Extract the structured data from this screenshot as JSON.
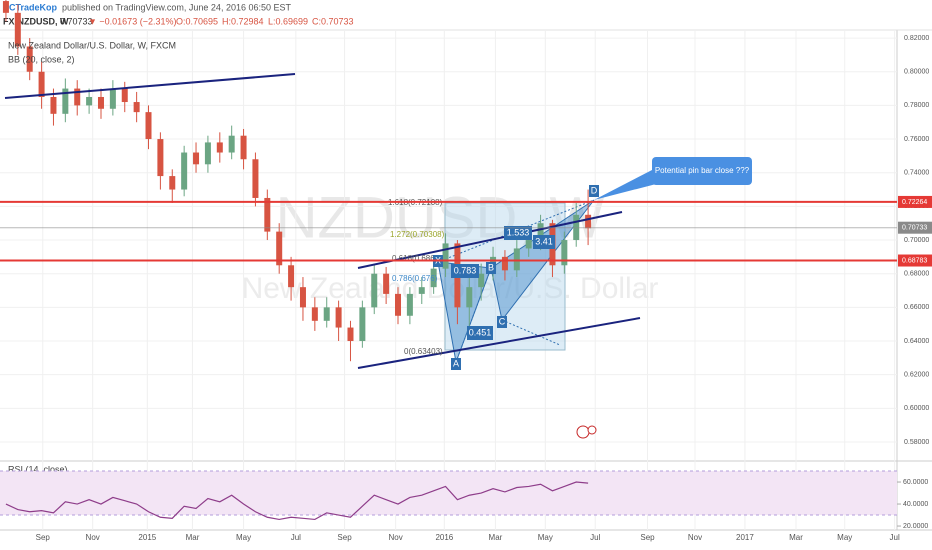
{
  "header": {
    "publisher": "PCTradeKop",
    "published": "published on TradingView.com, June 24, 2016 06:50 EST",
    "symbol": "FX:NZDUSD, W",
    "last": "0.70733",
    "change": "▼ −0.01673 (−2.31%)",
    "open": "O:0.70695",
    "high": "H:0.72984",
    "low": "L:0.69699",
    "close": "C:0.70733"
  },
  "chart_data": {
    "type": "candlestick",
    "title": "New Zealand Dollar/U.S. Dollar, W, FXCM",
    "indicator": "BB (20, close, 2)",
    "watermark": "NZDUSD, W",
    "watermark_subtitle": "New Zealand Dollar/U.S. Dollar",
    "up_color": "#6ba583",
    "down_color": "#d75442",
    "open": [
      0.842,
      0.835,
      0.815,
      0.8,
      0.785,
      0.775,
      0.79,
      0.78,
      0.785,
      0.778,
      0.79,
      0.782,
      0.776,
      0.76,
      0.738,
      0.73,
      0.752,
      0.745,
      0.758,
      0.752,
      0.762,
      0.748,
      0.725,
      0.705,
      0.685,
      0.672,
      0.66,
      0.652,
      0.66,
      0.648,
      0.64,
      0.66,
      0.68,
      0.668,
      0.655,
      0.668,
      0.672,
      0.683,
      0.698,
      0.66,
      0.672,
      0.68,
      0.69,
      0.682,
      0.695,
      0.7,
      0.71,
      0.685,
      0.7,
      0.715
    ],
    "high": [
      0.848,
      0.84,
      0.82,
      0.806,
      0.79,
      0.796,
      0.795,
      0.79,
      0.79,
      0.795,
      0.794,
      0.788,
      0.78,
      0.764,
      0.742,
      0.756,
      0.758,
      0.762,
      0.764,
      0.768,
      0.766,
      0.752,
      0.73,
      0.71,
      0.69,
      0.678,
      0.666,
      0.666,
      0.664,
      0.652,
      0.664,
      0.686,
      0.684,
      0.672,
      0.672,
      0.678,
      0.688,
      0.704,
      0.7,
      0.678,
      0.686,
      0.696,
      0.694,
      0.7,
      0.708,
      0.715,
      0.712,
      0.705,
      0.722,
      0.73
    ],
    "low": [
      0.83,
      0.81,
      0.795,
      0.778,
      0.768,
      0.77,
      0.774,
      0.775,
      0.772,
      0.774,
      0.776,
      0.77,
      0.754,
      0.73,
      0.722,
      0.726,
      0.74,
      0.74,
      0.746,
      0.748,
      0.742,
      0.72,
      0.7,
      0.68,
      0.664,
      0.652,
      0.646,
      0.648,
      0.64,
      0.628,
      0.636,
      0.656,
      0.662,
      0.65,
      0.65,
      0.662,
      0.668,
      0.678,
      0.65,
      0.645,
      0.664,
      0.676,
      0.676,
      0.678,
      0.69,
      0.694,
      0.678,
      0.68,
      0.696,
      0.697
    ],
    "close": [
      0.835,
      0.815,
      0.8,
      0.785,
      0.775,
      0.79,
      0.78,
      0.785,
      0.778,
      0.79,
      0.782,
      0.776,
      0.76,
      0.738,
      0.73,
      0.752,
      0.745,
      0.758,
      0.752,
      0.762,
      0.748,
      0.725,
      0.705,
      0.685,
      0.672,
      0.66,
      0.652,
      0.66,
      0.648,
      0.64,
      0.66,
      0.68,
      0.668,
      0.655,
      0.668,
      0.672,
      0.683,
      0.698,
      0.66,
      0.672,
      0.68,
      0.69,
      0.682,
      0.695,
      0.7,
      0.71,
      0.685,
      0.7,
      0.715,
      0.707
    ],
    "xlim": [
      -0.5,
      75
    ],
    "xticks": [
      {
        "value": 3.1,
        "label": "Sep"
      },
      {
        "value": 7.3,
        "label": "Nov"
      },
      {
        "value": 11.9,
        "label": "2015"
      },
      {
        "value": 15.7,
        "label": "Mar"
      },
      {
        "value": 20.0,
        "label": "May"
      },
      {
        "value": 24.4,
        "label": "Jul"
      },
      {
        "value": 28.5,
        "label": "Sep"
      },
      {
        "value": 32.8,
        "label": "Nov"
      },
      {
        "value": 36.9,
        "label": "2016"
      },
      {
        "value": 41.2,
        "label": "Mar"
      },
      {
        "value": 45.4,
        "label": "May"
      },
      {
        "value": 49.6,
        "label": "Jul"
      },
      {
        "value": 54.0,
        "label": "Sep"
      },
      {
        "value": 58.0,
        "label": "Nov"
      },
      {
        "value": 62.2,
        "label": "2017"
      },
      {
        "value": 66.5,
        "label": "Mar"
      },
      {
        "value": 70.6,
        "label": "May"
      },
      {
        "value": 74.8,
        "label": "Jul"
      }
    ],
    "ylim": [
      0.5693,
      0.8248
    ],
    "yticks": [
      {
        "value": 0.58,
        "label": "0.58000"
      },
      {
        "value": 0.6,
        "label": "0.60000"
      },
      {
        "value": 0.62,
        "label": "0.62000"
      },
      {
        "value": 0.64,
        "label": "0.64000"
      },
      {
        "value": 0.66,
        "label": "0.66000"
      },
      {
        "value": 0.68,
        "label": "0.68000"
      },
      {
        "value": 0.7,
        "label": "0.70000"
      },
      {
        "value": 0.72,
        "label": "0.72000"
      },
      {
        "value": 0.74,
        "label": "0.74000"
      },
      {
        "value": 0.76,
        "label": "0.76000"
      },
      {
        "value": 0.78,
        "label": "0.78000"
      },
      {
        "value": 0.8,
        "label": "0.80000"
      },
      {
        "value": 0.82,
        "label": "0.82000"
      }
    ],
    "levels": [
      {
        "value": 0.72264,
        "label": "0.72264",
        "color": "#e53935"
      },
      {
        "value": 0.70733,
        "label": "0.70733",
        "color": "#8a8a8a"
      },
      {
        "value": 0.68783,
        "label": "0.68783",
        "color": "#e53935"
      }
    ],
    "annotations": {
      "fib_1618": "1.618(0.72108)",
      "fib_1272": "1.272(0.70308)",
      "fib_0618": "0.618(0.6863)",
      "fib_0786": "0.786(0.676)",
      "fib_0": "0(0.63403)",
      "ratio_xab": "0.783",
      "ratio_bcd": "1.533",
      "ratio_xad": "3.41",
      "ratio_abc": "0.451",
      "point_x": "X",
      "point_a": "A",
      "point_b": "B",
      "point_c": "C",
      "point_d": "D",
      "callout": "Potential pin bar close ???"
    },
    "rsi": {
      "title": "RSI (14, close)",
      "color": "#8e3d8a",
      "ylim": [
        16.4,
        78.2
      ],
      "band": [
        30,
        70
      ],
      "yticks": [
        {
          "value": 60,
          "label": "60.0000"
        },
        {
          "value": 40,
          "label": "40.0000"
        },
        {
          "value": 20,
          "label": "20.0000"
        }
      ],
      "values": [
        40,
        35,
        33,
        34,
        32,
        42,
        40,
        44,
        40,
        46,
        43,
        40,
        33,
        28,
        27,
        38,
        36,
        45,
        42,
        48,
        40,
        33,
        28,
        26,
        28,
        27,
        26,
        32,
        30,
        28,
        38,
        48,
        44,
        40,
        46,
        48,
        52,
        56,
        44,
        48,
        50,
        54,
        51,
        55,
        56,
        58,
        52,
        56,
        60,
        59
      ]
    }
  }
}
